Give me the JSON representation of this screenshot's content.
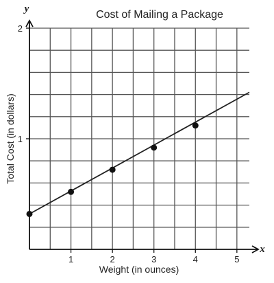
{
  "chart_data": {
    "type": "line",
    "title": "Cost of Mailing a Package",
    "xlabel": "Weight (in ounces)",
    "ylabel": "Total Cost (in dollars)",
    "x_axis_letter": "x",
    "y_axis_letter": "y",
    "xlim": [
      0,
      5.3
    ],
    "ylim": [
      0,
      2
    ],
    "x_grid_step": 0.5,
    "y_grid_step": 0.2,
    "grid": true,
    "x_ticks": [
      1,
      2,
      3,
      4,
      5
    ],
    "x_tick_labels": [
      "1",
      "2",
      "3",
      "4",
      "5"
    ],
    "y_ticks": [
      1,
      2
    ],
    "y_tick_labels": [
      "1",
      "2"
    ],
    "line": {
      "x": [
        0,
        5.3
      ],
      "y": [
        0.32,
        1.42
      ]
    },
    "points": {
      "x": [
        0,
        1,
        2,
        3,
        4
      ],
      "y": [
        0.32,
        0.52,
        0.72,
        0.92,
        1.12
      ]
    },
    "colors": {
      "line": "#222222",
      "grid": "#555555",
      "points": "#111111"
    }
  }
}
